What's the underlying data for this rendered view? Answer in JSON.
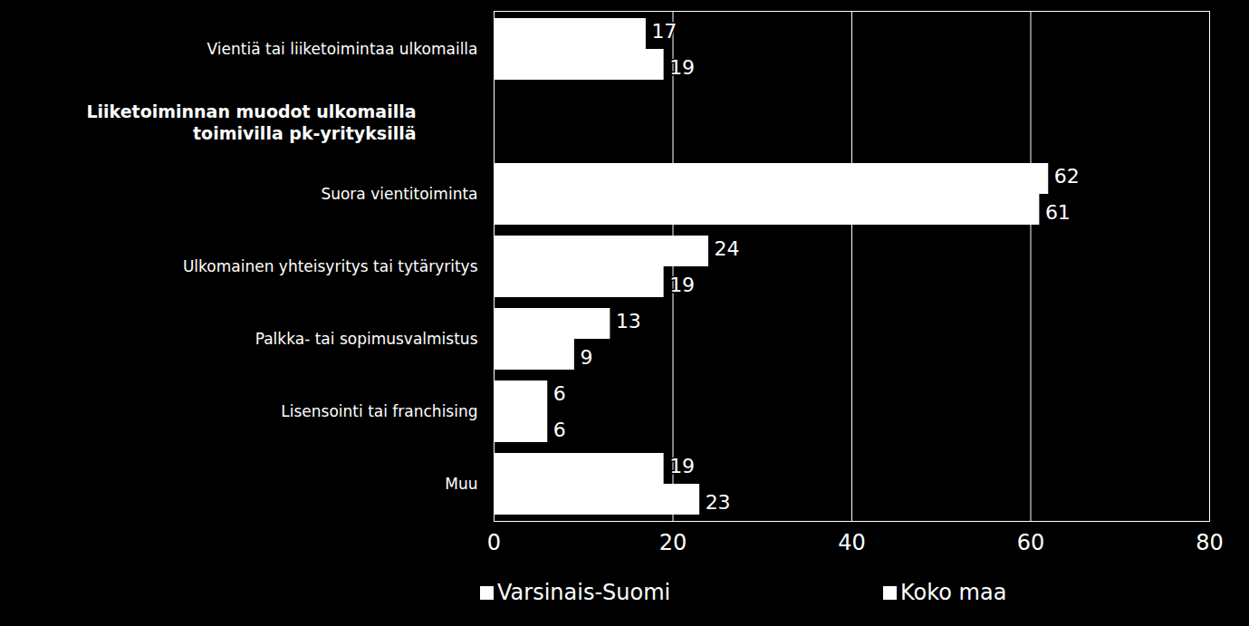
{
  "chart_data": {
    "type": "bar",
    "orientation": "horizontal",
    "categories": [
      "Vientiä tai liiketoimintaa ulkomailla",
      "Liiketoiminnan muodot ulkomailla\ntoimivilla pk-yrityksillä",
      "Suora vientitoiminta",
      "Ulkomainen yhteisyritys tai tytäryritys",
      "Palkka- tai sopimusvalmistus",
      "Lisensointi tai franchising",
      "Muu"
    ],
    "series": [
      {
        "name": "Varsinais-Suomi",
        "color": "#ffffff",
        "values": [
          17,
          null,
          62,
          24,
          13,
          6,
          19
        ]
      },
      {
        "name": "Koko maa",
        "color": "#ffffff",
        "values": [
          19,
          null,
          61,
          19,
          9,
          6,
          23
        ]
      }
    ],
    "xlim": [
      0,
      80
    ],
    "xticks": [
      0,
      20,
      40,
      60,
      80
    ],
    "grid": true,
    "data_labels": true,
    "legend": "bottom"
  }
}
